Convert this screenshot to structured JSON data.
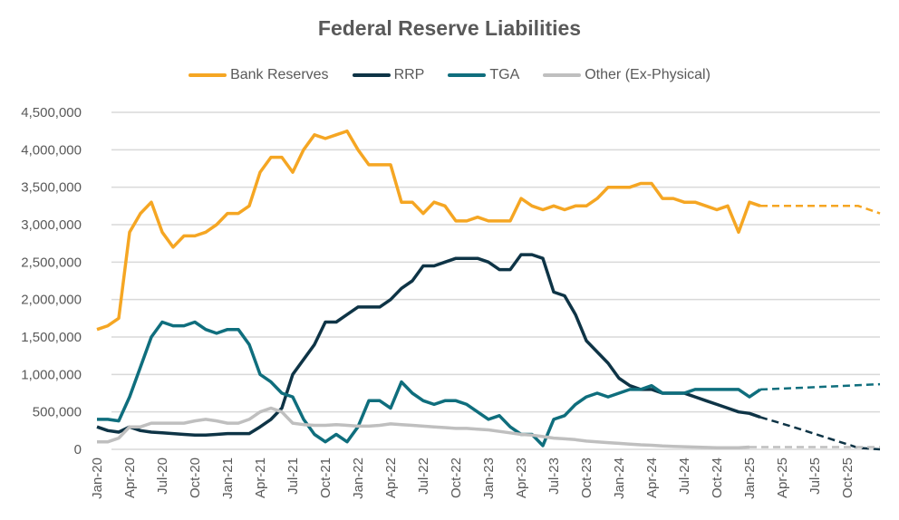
{
  "chart_data": {
    "type": "line",
    "title": "Federal Reserve Liabilities",
    "xlabel": "",
    "ylabel": "",
    "ylim": [
      0,
      4500000
    ],
    "y_ticks": [
      "0",
      "500,000",
      "1,000,000",
      "1,500,000",
      "2,000,000",
      "2,500,000",
      "3,000,000",
      "3,500,000",
      "4,000,000",
      "4,500,000"
    ],
    "x_ticks": [
      "Jan-20",
      "Apr-20",
      "Jul-20",
      "Oct-20",
      "Jan-21",
      "Apr-21",
      "Jul-21",
      "Oct-21",
      "Jan-22",
      "Apr-22",
      "Jul-22",
      "Oct-22",
      "Jan-23",
      "Apr-23",
      "Jul-23",
      "Oct-23",
      "Jan-24",
      "Apr-24",
      "Jul-24",
      "Oct-24",
      "Jan-25",
      "Apr-25",
      "Jul-25",
      "Oct-25"
    ],
    "x_unit": "months since Jan-20",
    "xlim": [
      0,
      72
    ],
    "grid": true,
    "legend_position": "top",
    "series": [
      {
        "name": "Bank Reserves",
        "color": "#F5A623",
        "values_thousands": [
          1600,
          1650,
          1750,
          2900,
          3150,
          3300,
          2900,
          2700,
          2850,
          2850,
          2900,
          3000,
          3150,
          3150,
          3250,
          3700,
          3900,
          3900,
          3700,
          4000,
          4200,
          4150,
          4200,
          4250,
          4000,
          3800,
          3800,
          3800,
          3300,
          3300,
          3150,
          3300,
          3250,
          3050,
          3050,
          3100,
          3050,
          3050,
          3050,
          3350,
          3250,
          3200,
          3250,
          3200,
          3250,
          3250,
          3350,
          3500,
          3500,
          3500,
          3550,
          3550,
          3350,
          3350,
          3300,
          3300,
          3250,
          3200,
          3250,
          2900,
          3300,
          3250
        ],
        "projection": [
          [
            61,
            3250
          ],
          [
            70,
            3250
          ],
          [
            72,
            3150
          ]
        ]
      },
      {
        "name": "RRP",
        "color": "#0E3446",
        "values_thousands": [
          300,
          250,
          230,
          300,
          250,
          230,
          220,
          210,
          200,
          190,
          190,
          200,
          210,
          210,
          210,
          300,
          400,
          550,
          1000,
          1200,
          1400,
          1700,
          1700,
          1800,
          1900,
          1900,
          1900,
          2000,
          2150,
          2250,
          2450,
          2450,
          2500,
          2550,
          2550,
          2550,
          2500,
          2400,
          2400,
          2600,
          2600,
          2550,
          2100,
          2050,
          1800,
          1450,
          1300,
          1150,
          950,
          850,
          800,
          800,
          750,
          750,
          750,
          700,
          650,
          600,
          550,
          500,
          480,
          430
        ],
        "projection": [
          [
            61,
            430
          ],
          [
            64,
            300
          ],
          [
            70,
            20
          ],
          [
            72,
            0
          ]
        ]
      },
      {
        "name": "TGA",
        "color": "#0F6E7D",
        "values_thousands": [
          400,
          400,
          380,
          700,
          1100,
          1500,
          1700,
          1650,
          1650,
          1700,
          1600,
          1550,
          1600,
          1600,
          1400,
          1000,
          900,
          750,
          700,
          400,
          200,
          100,
          200,
          100,
          300,
          650,
          650,
          550,
          900,
          750,
          650,
          600,
          650,
          650,
          600,
          500,
          400,
          450,
          300,
          200,
          200,
          50,
          400,
          450,
          600,
          700,
          750,
          700,
          750,
          800,
          800,
          850,
          750,
          750,
          750,
          800,
          800,
          800,
          800,
          800,
          700,
          800
        ],
        "projection": [
          [
            61,
            800
          ],
          [
            66,
            830
          ],
          [
            72,
            870
          ]
        ]
      },
      {
        "name": "Other (Ex-Physical)",
        "color": "#BFBFBF",
        "values_thousands": [
          100,
          100,
          150,
          300,
          300,
          350,
          350,
          350,
          350,
          380,
          400,
          380,
          350,
          350,
          400,
          500,
          550,
          500,
          350,
          330,
          320,
          320,
          330,
          320,
          310,
          310,
          320,
          340,
          330,
          320,
          310,
          300,
          290,
          280,
          280,
          270,
          260,
          240,
          220,
          200,
          190,
          170,
          150,
          140,
          130,
          110,
          100,
          90,
          80,
          70,
          60,
          55,
          45,
          40,
          35,
          30,
          25,
          20,
          20,
          20,
          30
        ],
        "projection": [
          [
            60,
            30
          ],
          [
            72,
            30
          ]
        ]
      }
    ]
  }
}
